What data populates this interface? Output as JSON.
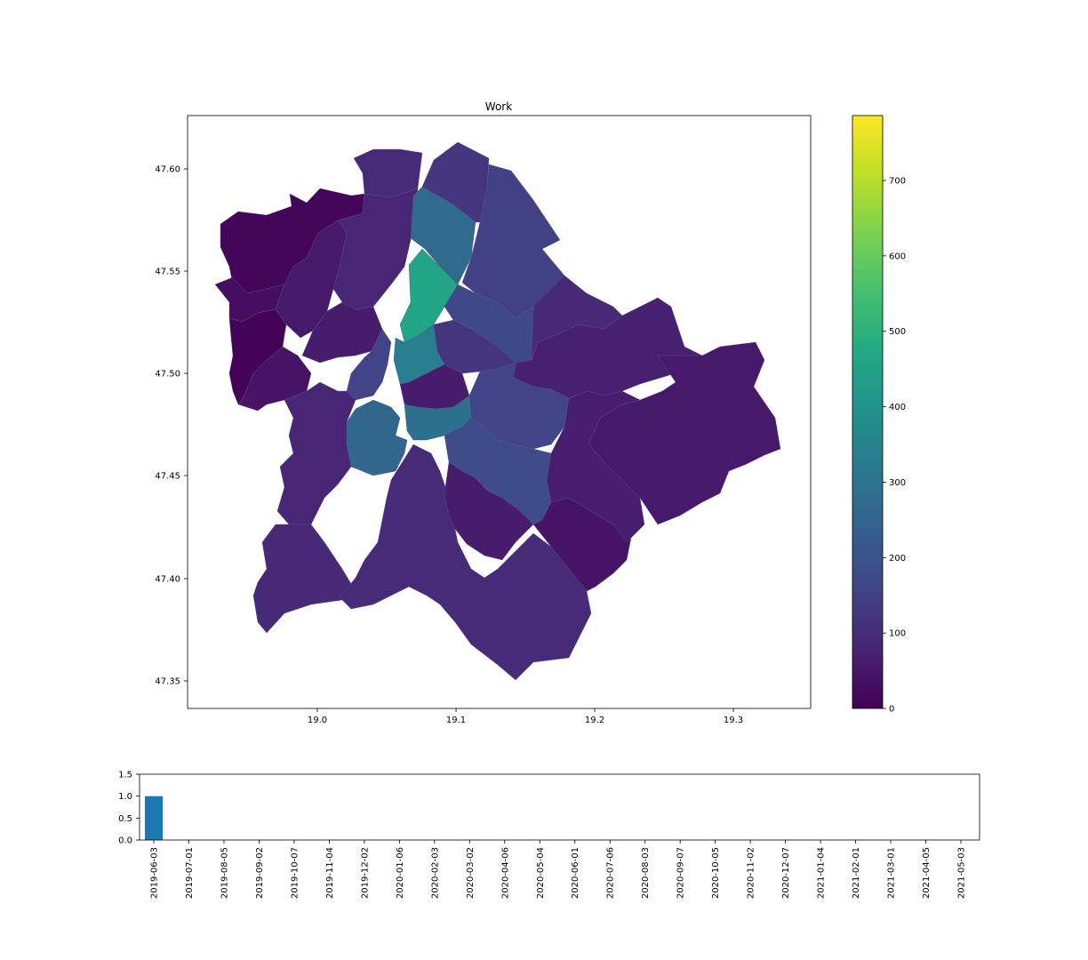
{
  "map": {
    "title": "Work",
    "x_ticks": [
      "19.0",
      "19.1",
      "19.2",
      "19.3"
    ],
    "y_ticks": [
      "47.60",
      "47.55",
      "47.50",
      "47.45",
      "47.40",
      "47.35"
    ],
    "colormap": "viridis",
    "districts": [
      {
        "id": "north-west-hills",
        "value": 10
      },
      {
        "id": "north-west-1",
        "value": 30
      },
      {
        "id": "north-west-2",
        "value": 5
      },
      {
        "id": "north-west-3",
        "value": 40
      },
      {
        "id": "buda-hills",
        "value": 55
      },
      {
        "id": "buda-north",
        "value": 80
      },
      {
        "id": "north-island",
        "value": 95
      },
      {
        "id": "obuda-north",
        "value": 60
      },
      {
        "id": "ujpest-west",
        "value": 270
      },
      {
        "id": "ujpest-north",
        "value": 120
      },
      {
        "id": "ujpest-east",
        "value": 150
      },
      {
        "id": "angyalfold",
        "value": 460
      },
      {
        "id": "zuglo-north",
        "value": 175
      },
      {
        "id": "rakospalota",
        "value": 90
      },
      {
        "id": "lipotvaros",
        "value": 330
      },
      {
        "id": "varosliget",
        "value": 120
      },
      {
        "id": "buda-castle",
        "value": 160
      },
      {
        "id": "inner-pest",
        "value": 60
      },
      {
        "id": "east-pest",
        "value": 70
      },
      {
        "id": "rakosmente",
        "value": 55
      },
      {
        "id": "kobanya",
        "value": 160
      },
      {
        "id": "ferencvaros",
        "value": 290
      },
      {
        "id": "ujbuda",
        "value": 260
      },
      {
        "id": "south-buda",
        "value": 80
      },
      {
        "id": "budafok",
        "value": 90
      },
      {
        "id": "csepel",
        "value": 95
      },
      {
        "id": "kispest",
        "value": 180
      },
      {
        "id": "pesterzsebet",
        "value": 60
      },
      {
        "id": "soroksar",
        "value": 40
      },
      {
        "id": "xvii-east",
        "value": 65
      }
    ]
  },
  "colorbar": {
    "ticks": [
      "0",
      "100",
      "200",
      "300",
      "400",
      "500",
      "600",
      "700"
    ],
    "min": 0,
    "max": 786
  },
  "chart_data": {
    "type": "bar",
    "categories": [
      "2019-06-03",
      "2019-07-01",
      "2019-08-05",
      "2019-09-02",
      "2019-10-07",
      "2019-11-04",
      "2019-12-02",
      "2020-01-06",
      "2020-02-03",
      "2020-03-02",
      "2020-04-06",
      "2020-05-04",
      "2020-06-01",
      "2020-07-06",
      "2020-08-03",
      "2020-09-07",
      "2020-10-05",
      "2020-11-02",
      "2020-12-07",
      "2021-01-04",
      "2021-02-01",
      "2021-03-01",
      "2021-04-05",
      "2021-05-03"
    ],
    "values": [
      1,
      0,
      0,
      0,
      0,
      0,
      0,
      0,
      0,
      0,
      0,
      0,
      0,
      0,
      0,
      0,
      0,
      0,
      0,
      0,
      0,
      0,
      0,
      0
    ],
    "ylim": [
      0,
      1.5
    ],
    "yticks": [
      "0.0",
      "0.5",
      "1.0",
      "1.5"
    ],
    "bar_color": "#1f77b4"
  }
}
